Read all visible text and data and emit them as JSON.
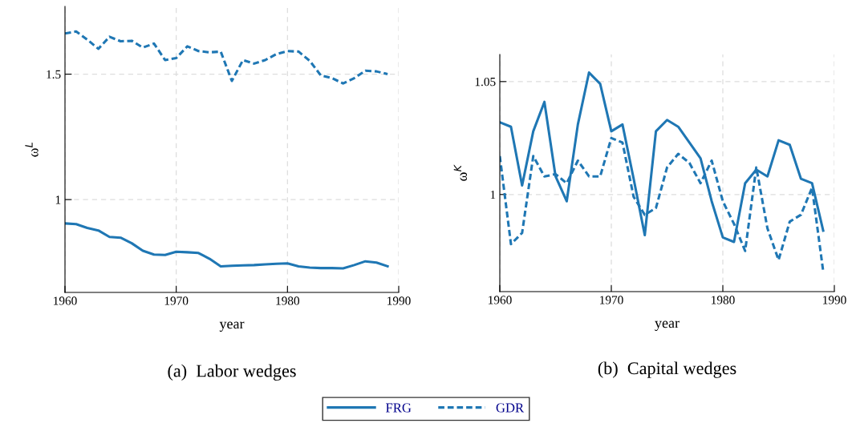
{
  "chart_data": [
    {
      "type": "line",
      "title": "(a)  Labor wedges",
      "xlabel": "year",
      "ylabel": "ω$^{L}$",
      "x": [
        1960,
        1961,
        1962,
        1963,
        1964,
        1965,
        1966,
        1967,
        1968,
        1969,
        1970,
        1971,
        1972,
        1973,
        1974,
        1975,
        1976,
        1977,
        1978,
        1979,
        1980,
        1981,
        1982,
        1983,
        1984,
        1985,
        1986,
        1987,
        1988,
        1989
      ],
      "series": [
        {
          "name": "FRG",
          "color": "#1f77b4",
          "line_style": "solid",
          "values": [
            0.905,
            0.902,
            0.887,
            0.877,
            0.851,
            0.848,
            0.826,
            0.796,
            0.781,
            0.779,
            0.792,
            0.79,
            0.787,
            0.764,
            0.734,
            0.736,
            0.738,
            0.739,
            0.742,
            0.744,
            0.746,
            0.734,
            0.729,
            0.727,
            0.727,
            0.726,
            0.739,
            0.754,
            0.749,
            0.734
          ]
        },
        {
          "name": "GDR",
          "color": "#1f77b4",
          "line_style": "dashed",
          "values": [
            1.662,
            1.67,
            1.638,
            1.601,
            1.649,
            1.631,
            1.633,
            1.606,
            1.622,
            1.556,
            1.564,
            1.611,
            1.592,
            1.587,
            1.59,
            1.473,
            1.556,
            1.542,
            1.556,
            1.58,
            1.592,
            1.59,
            1.553,
            1.495,
            1.484,
            1.463,
            1.484,
            1.514,
            1.511,
            1.5
          ]
        }
      ],
      "xlim": [
        1960,
        1990
      ],
      "xticks": [
        1960,
        1970,
        1980,
        1990
      ],
      "ylim": [
        0.63,
        1.77
      ],
      "yticks": [
        1,
        1.5
      ],
      "grid": true,
      "legend": "bottom"
    },
    {
      "type": "line",
      "title": "(b)  Capital wedges",
      "xlabel": "year",
      "ylabel": "ω$^{K}$",
      "x": [
        1960,
        1961,
        1962,
        1963,
        1964,
        1965,
        1966,
        1967,
        1968,
        1969,
        1970,
        1971,
        1972,
        1973,
        1974,
        1975,
        1976,
        1977,
        1978,
        1979,
        1980,
        1981,
        1982,
        1983,
        1984,
        1985,
        1986,
        1987,
        1988,
        1989
      ],
      "series": [
        {
          "name": "FRG",
          "color": "#1f77b4",
          "line_style": "solid",
          "values": [
            1.032,
            1.03,
            1.004,
            1.028,
            1.041,
            1.008,
            0.997,
            1.031,
            1.054,
            1.049,
            1.028,
            1.031,
            1.007,
            0.982,
            1.028,
            1.033,
            1.03,
            1.023,
            1.016,
            0.997,
            0.981,
            0.979,
            1.005,
            1.011,
            1.008,
            1.024,
            1.022,
            1.007,
            1.005,
            0.984
          ]
        },
        {
          "name": "GDR",
          "color": "#1f77b4",
          "line_style": "dashed",
          "values": [
            1.017,
            0.978,
            0.983,
            1.017,
            1.008,
            1.009,
            1.005,
            1.015,
            1.008,
            1.008,
            1.025,
            1.023,
            0.999,
            0.991,
            0.994,
            1.012,
            1.018,
            1.014,
            1.005,
            1.015,
            0.997,
            0.987,
            0.975,
            1.012,
            0.985,
            0.971,
            0.988,
            0.991,
            1.003,
            0.966
          ]
        }
      ],
      "xlim": [
        1960,
        1990
      ],
      "xticks": [
        1960,
        1970,
        1980,
        1990
      ],
      "ylim": [
        0.957,
        1.062
      ],
      "yticks": [
        1,
        1.05
      ],
      "grid": true,
      "legend": "bottom"
    }
  ]
}
